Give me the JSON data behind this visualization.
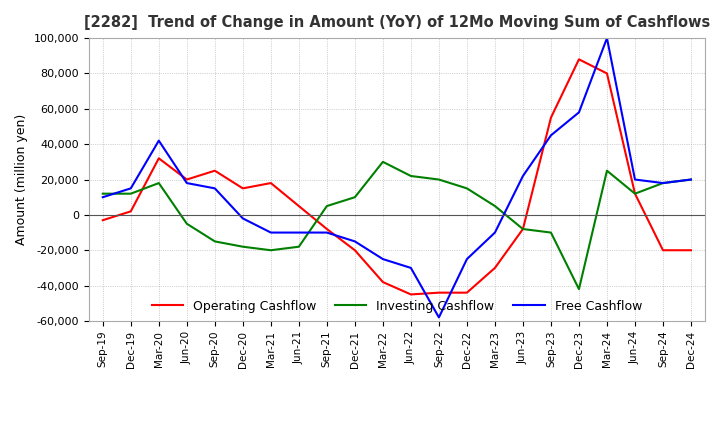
{
  "title": "[2282]  Trend of Change in Amount (YoY) of 12Mo Moving Sum of Cashflows",
  "ylabel": "Amount (million yen)",
  "ylim": [
    -60000,
    100000
  ],
  "yticks": [
    -60000,
    -40000,
    -20000,
    0,
    20000,
    40000,
    60000,
    80000,
    100000
  ],
  "x_labels": [
    "Sep-19",
    "Dec-19",
    "Mar-20",
    "Jun-20",
    "Sep-20",
    "Dec-20",
    "Mar-21",
    "Jun-21",
    "Sep-21",
    "Dec-21",
    "Mar-22",
    "Jun-22",
    "Sep-22",
    "Dec-22",
    "Mar-23",
    "Jun-23",
    "Sep-23",
    "Dec-23",
    "Mar-24",
    "Jun-24",
    "Sep-24",
    "Dec-24"
  ],
  "operating": [
    -3000,
    2000,
    32000,
    20000,
    25000,
    15000,
    18000,
    5000,
    -8000,
    -20000,
    -38000,
    -45000,
    -44000,
    -44000,
    -30000,
    -8000,
    55000,
    88000,
    80000,
    12000,
    -20000,
    -20000
  ],
  "investing": [
    12000,
    12000,
    18000,
    -5000,
    -15000,
    -18000,
    -20000,
    -18000,
    5000,
    10000,
    30000,
    22000,
    20000,
    15000,
    5000,
    -8000,
    -10000,
    -42000,
    25000,
    12000,
    18000,
    20000
  ],
  "free": [
    10000,
    15000,
    42000,
    18000,
    15000,
    -2000,
    -10000,
    -10000,
    -10000,
    -15000,
    -25000,
    -30000,
    -58000,
    -25000,
    -10000,
    22000,
    45000,
    58000,
    100000,
    20000,
    18000,
    20000
  ],
  "operating_color": "#ff0000",
  "investing_color": "#008000",
  "free_color": "#0000ff",
  "background_color": "#ffffff",
  "grid_color": "#aaaaaa"
}
